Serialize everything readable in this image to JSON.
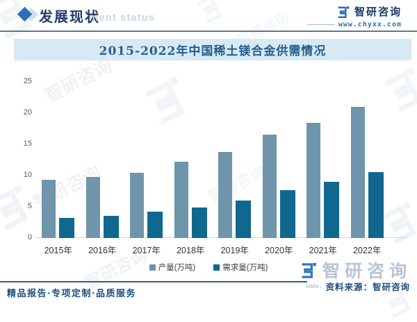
{
  "header": {
    "section_title": "发展现状",
    "section_title_en_faded": "ment status"
  },
  "brand": {
    "name": "智研咨询",
    "url": "www.chyxx.com"
  },
  "chart_data": {
    "type": "bar",
    "title": "2015-2022年中国稀土镁合金供需情况",
    "categories": [
      "2015年",
      "2016年",
      "2017年",
      "2018年",
      "2019年",
      "2020年",
      "2021年",
      "2022年"
    ],
    "series": [
      {
        "name": "产量(万吨)",
        "color": "#6e95aa",
        "values": [
          9.3,
          9.8,
          10.4,
          12.2,
          13.8,
          16.6,
          18.5,
          21.0
        ]
      },
      {
        "name": "需求量(万吨)",
        "color": "#10688f",
        "values": [
          3.2,
          3.6,
          4.2,
          4.9,
          6.0,
          7.7,
          9.0,
          10.6
        ]
      }
    ],
    "xlabel": "",
    "ylabel": "",
    "ylim": [
      0,
      25
    ],
    "yticks": [
      0,
      5,
      10,
      15,
      20,
      25
    ],
    "grid": false,
    "legend_position": "bottom"
  },
  "watermark": {
    "text": "智研咨询"
  },
  "footer": {
    "tagline": "精品报告·专项定制·品质服务",
    "url_faded": "www.",
    "source": "资料来源：智研咨询"
  }
}
